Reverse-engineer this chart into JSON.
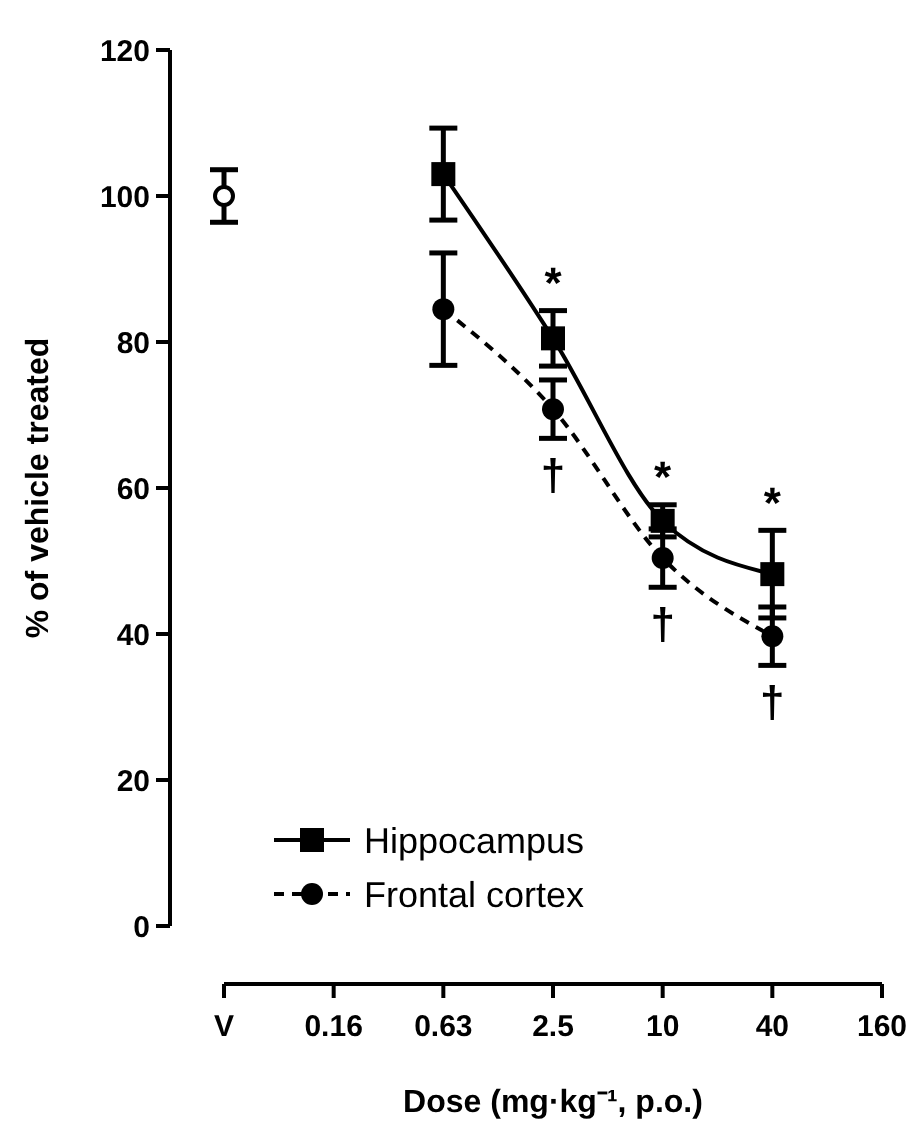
{
  "chart_data": {
    "type": "line",
    "xlabel": "Dose (mg·kg⁻¹, p.o.)",
    "ylabel": "% of vehicle treated",
    "categories": [
      "V",
      "0.16",
      "0.63",
      "2.5",
      "10",
      "40",
      "160"
    ],
    "ylim": [
      0,
      120
    ],
    "yticks": [
      0,
      20,
      40,
      60,
      80,
      100,
      120
    ],
    "grid": false,
    "legend": "bottom left",
    "series": [
      {
        "type": "scatter",
        "color": "#000000",
        "marker": "circle",
        "values": [
          100,
          null,
          null,
          null,
          null,
          null,
          null
        ],
        "errors": [
          3.6,
          null,
          null,
          null,
          null,
          null,
          null
        ]
      },
      {
        "name": "Hippocampus",
        "color": "#000000",
        "marker": "square",
        "line_style": "solid",
        "values": [
          null,
          null,
          103,
          80.5,
          55.5,
          48.2,
          null
        ],
        "errors": [
          null,
          null,
          6.3,
          3.8,
          2.2,
          6,
          null
        ]
      },
      {
        "name": "Frontal cortex",
        "color": "#000000",
        "marker": "circle",
        "line_style": "dashed",
        "values": [
          null,
          null,
          84.5,
          70.8,
          50.4,
          39.7,
          null
        ],
        "errors": [
          null,
          null,
          7.7,
          4,
          4,
          4,
          null
        ]
      }
    ],
    "annotations": [
      {
        "text": "*",
        "x": "2.5",
        "y": 80.5
      },
      {
        "text": "*",
        "x": "10",
        "y": 55.5
      },
      {
        "text": "*",
        "x": "40",
        "y": 48.2
      },
      {
        "text": "†",
        "x": "2.5",
        "y": 70.8
      },
      {
        "text": "†",
        "x": "10",
        "y": 50.4
      },
      {
        "text": "†",
        "x": "40",
        "y": 39.7
      }
    ]
  }
}
